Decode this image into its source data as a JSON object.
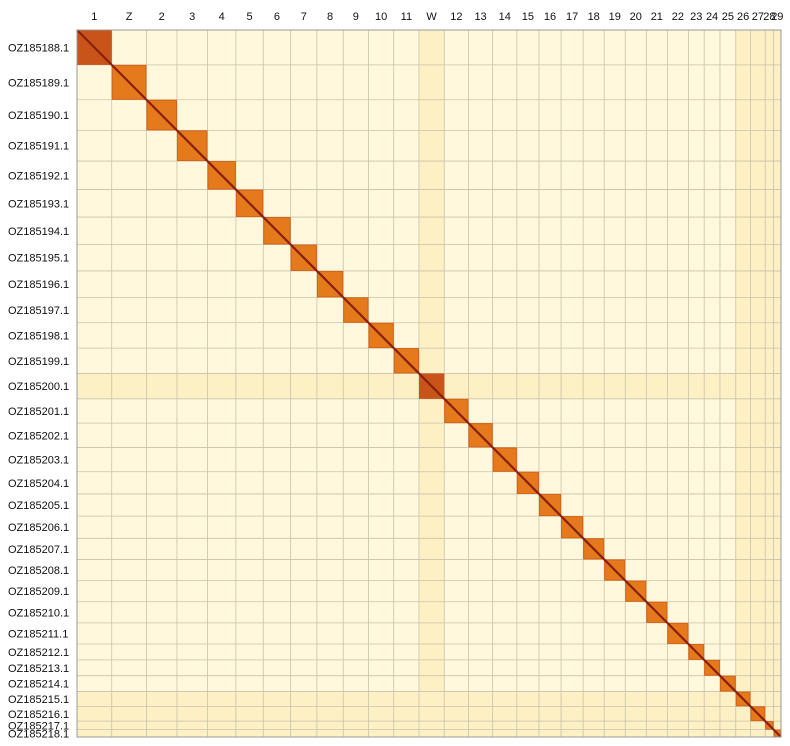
{
  "chart_data": {
    "type": "heatmap",
    "title": "",
    "xlabel": "",
    "ylabel": "",
    "x_labels": [
      "1",
      "Z",
      "2",
      "3",
      "4",
      "5",
      "6",
      "7",
      "8",
      "9",
      "10",
      "11",
      "W",
      "12",
      "13",
      "14",
      "15",
      "16",
      "17",
      "18",
      "19",
      "20",
      "21",
      "22",
      "23",
      "24",
      "25",
      "26",
      "27",
      "28",
      "29"
    ],
    "y_labels": [
      "OZ185188.1",
      "OZ185189.1",
      "OZ185190.1",
      "OZ185191.1",
      "OZ185192.1",
      "OZ185193.1",
      "OZ185194.1",
      "OZ185195.1",
      "OZ185196.1",
      "OZ185197.1",
      "OZ185198.1",
      "OZ185199.1",
      "OZ185200.1",
      "OZ185201.1",
      "OZ185202.1",
      "OZ185203.1",
      "OZ185204.1",
      "OZ185205.1",
      "OZ185206.1",
      "OZ185207.1",
      "OZ185208.1",
      "OZ185209.1",
      "OZ185210.1",
      "OZ185211.1",
      "OZ185212.1",
      "OZ185213.1",
      "OZ185214.1",
      "OZ185215.1",
      "OZ185216.1",
      "OZ185217.1",
      "OZ185218.1"
    ],
    "relative_sizes": [
      33,
      33,
      29,
      29,
      27,
      26,
      26,
      25,
      25,
      24,
      24,
      24,
      24,
      23,
      23,
      23,
      21,
      21,
      21,
      20,
      20,
      20,
      20,
      20,
      15,
      15,
      15,
      14,
      14,
      8,
      7
    ],
    "colorscale": [
      "#fffbeb",
      "#fde9a8",
      "#f5b84a",
      "#e47a1c",
      "#c8541a",
      "#8a1f10"
    ]
  }
}
